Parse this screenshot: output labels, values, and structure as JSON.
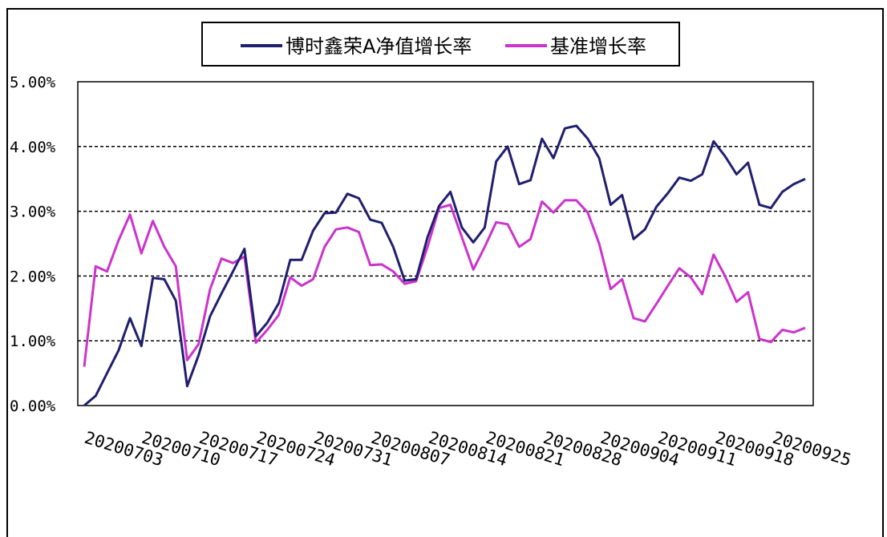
{
  "chart_data": {
    "type": "line",
    "title": "",
    "xlabel": "",
    "ylabel": "",
    "ylim": [
      0,
      5
    ],
    "y_ticks": [
      "0.00%",
      "1.00%",
      "2.00%",
      "3.00%",
      "4.00%",
      "5.00%"
    ],
    "x_tick_labels": [
      "20200703",
      "20200710",
      "20200717",
      "20200724",
      "20200731",
      "20200807",
      "20200814",
      "20200821",
      "20200828",
      "20200904",
      "20200911",
      "20200918",
      "20200925"
    ],
    "grid": "horizontal dashed",
    "legend_position": "top-center",
    "series": [
      {
        "name": "博时鑫荣A净值增长率",
        "color": "#1f1f6e",
        "values": [
          0.0,
          0.15,
          0.5,
          0.85,
          1.35,
          0.92,
          1.97,
          1.95,
          1.62,
          0.3,
          0.78,
          1.38,
          1.73,
          2.07,
          2.42,
          1.07,
          1.28,
          1.58,
          2.25,
          2.25,
          2.7,
          2.97,
          2.98,
          3.27,
          3.2,
          2.87,
          2.82,
          2.45,
          1.93,
          1.95,
          2.6,
          3.08,
          3.3,
          2.75,
          2.52,
          2.75,
          3.77,
          4.0,
          3.42,
          3.48,
          4.12,
          3.82,
          4.28,
          4.32,
          4.12,
          3.82,
          3.1,
          3.25,
          2.57,
          2.72,
          3.07,
          3.28,
          3.52,
          3.47,
          3.57,
          4.08,
          3.85,
          3.57,
          3.75,
          3.1,
          3.05,
          3.3,
          3.42,
          3.5
        ]
      },
      {
        "name": "基准增长率",
        "color": "#cc33cc",
        "values": [
          0.6,
          2.15,
          2.07,
          2.55,
          2.95,
          2.35,
          2.85,
          2.45,
          2.15,
          0.7,
          0.95,
          1.8,
          2.27,
          2.2,
          2.3,
          0.97,
          1.17,
          1.4,
          1.98,
          1.85,
          1.95,
          2.45,
          2.72,
          2.75,
          2.68,
          2.17,
          2.18,
          2.07,
          1.88,
          1.92,
          2.45,
          3.05,
          3.1,
          2.6,
          2.1,
          2.45,
          2.83,
          2.8,
          2.45,
          2.57,
          3.15,
          2.98,
          3.17,
          3.17,
          2.98,
          2.5,
          1.8,
          1.95,
          1.35,
          1.3,
          1.57,
          1.85,
          2.12,
          1.98,
          1.72,
          2.33,
          2.0,
          1.6,
          1.75,
          1.03,
          0.98,
          1.17,
          1.13,
          1.2
        ]
      }
    ]
  }
}
